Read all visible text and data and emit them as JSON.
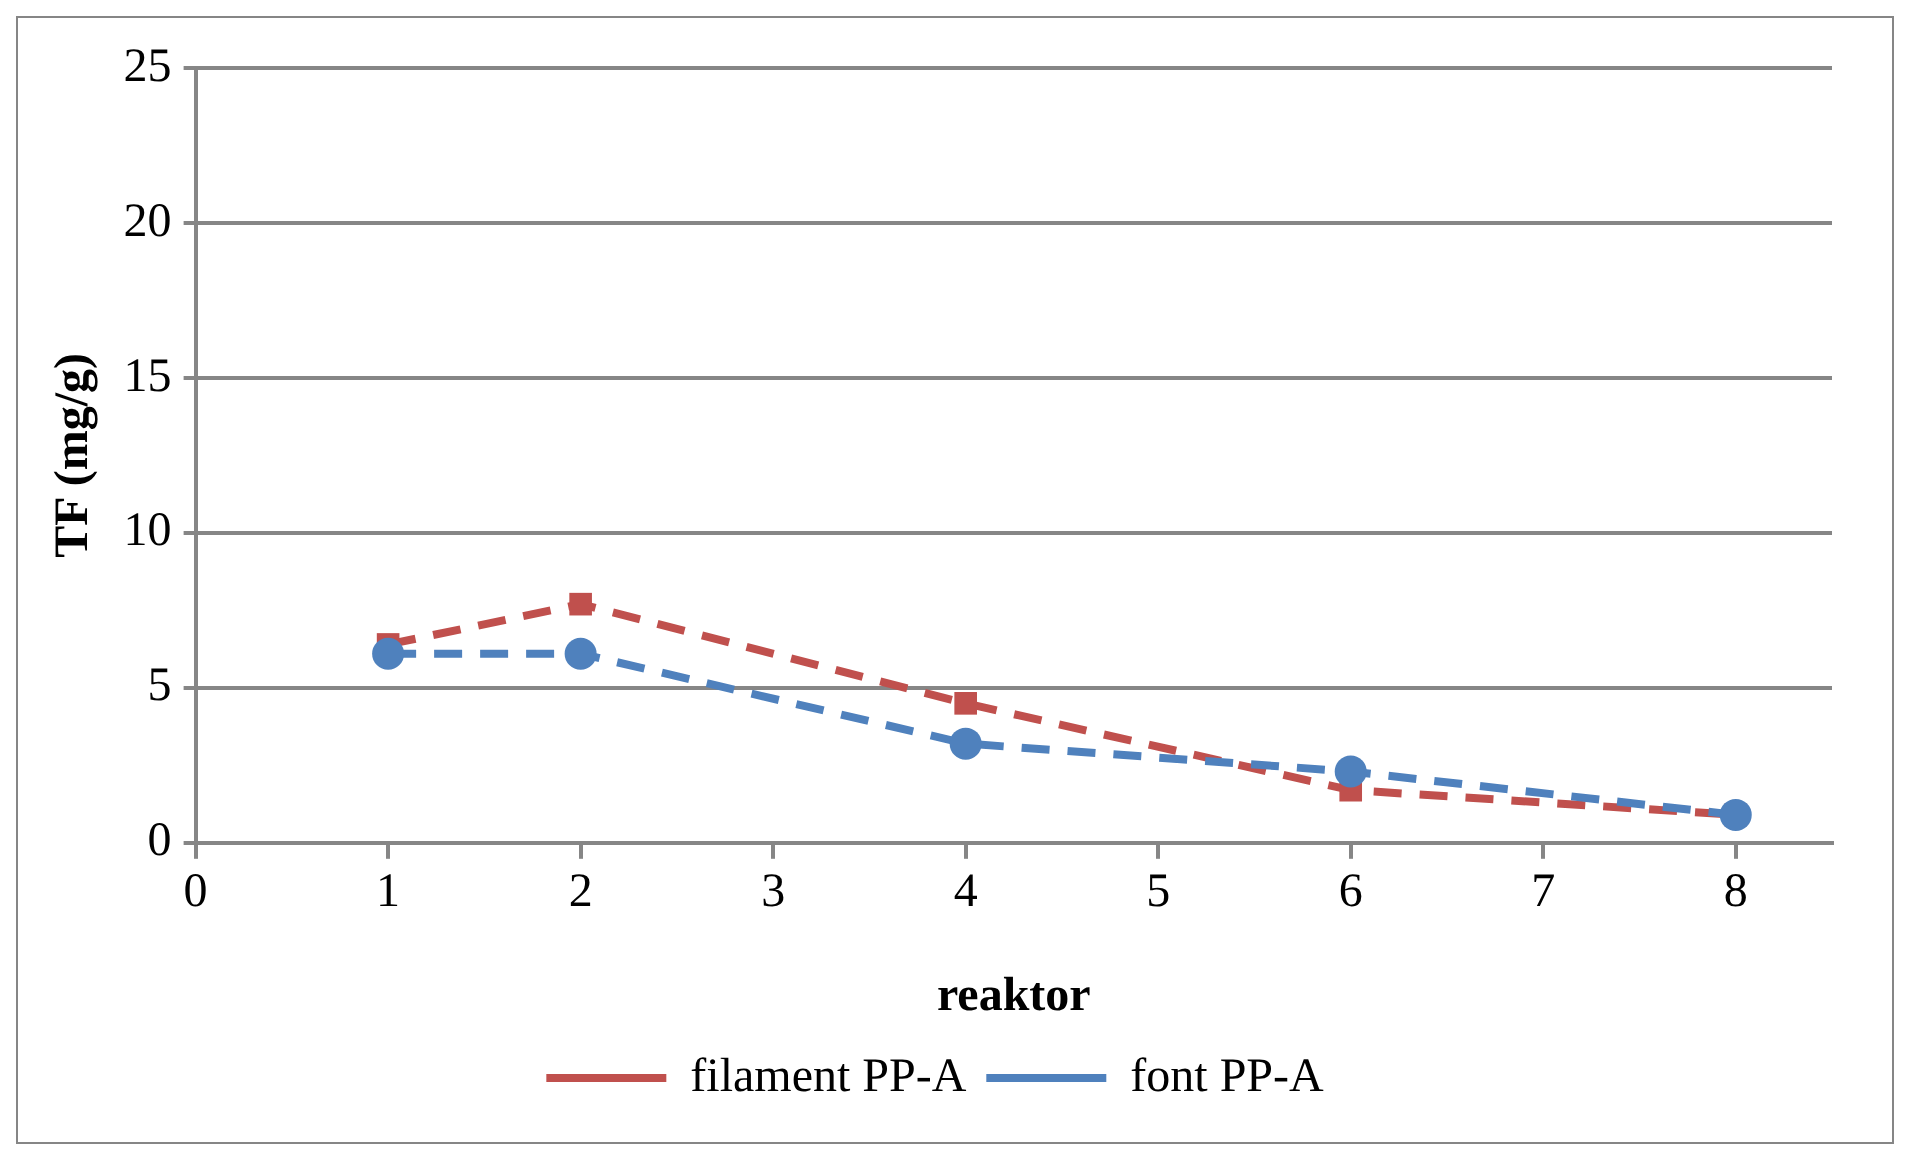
{
  "chart_data": {
    "type": "line",
    "xlabel": "reaktor",
    "ylabel": "TF (mg/g)",
    "x": [
      1,
      2,
      4,
      6,
      8
    ],
    "series": [
      {
        "name": "filament PP-A",
        "color": "#c0504d",
        "values": [
          6.4,
          7.7,
          4.5,
          1.7,
          0.9
        ],
        "marker": "square"
      },
      {
        "name": "font PP-A",
        "color": "#4f81bd",
        "values": [
          6.1,
          6.1,
          3.2,
          2.3,
          0.9
        ],
        "marker": "circle"
      }
    ],
    "xlim": [
      0,
      8.5
    ],
    "xticks": [
      0,
      1,
      2,
      3,
      4,
      5,
      6,
      7,
      8
    ],
    "ylim": [
      0,
      25
    ],
    "yticks": [
      0,
      5,
      10,
      15,
      20,
      25
    ],
    "grid": "y",
    "legend": "bottom",
    "line_style": "dashed"
  }
}
